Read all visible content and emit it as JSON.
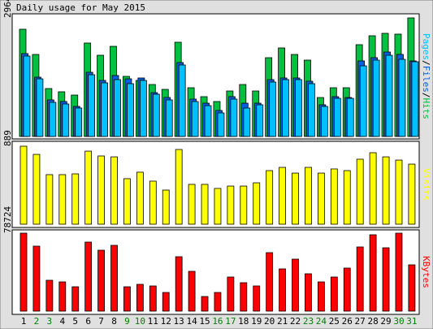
{
  "title": "Daily usage for May 2015",
  "chart_data": [
    {
      "type": "bar",
      "axis_label": "Pages/Files/Hits",
      "categories": [
        "1",
        "2",
        "3",
        "4",
        "5",
        "6",
        "7",
        "8",
        "9",
        "10",
        "11",
        "12",
        "13",
        "14",
        "15",
        "16",
        "17",
        "18",
        "19",
        "20",
        "21",
        "22",
        "23",
        "24",
        "25",
        "26",
        "27",
        "28",
        "29",
        "30",
        "31"
      ],
      "ylim": [
        0,
        2964
      ],
      "yticks": [
        2964
      ],
      "series": [
        {
          "name": "Hits",
          "color": "#00c040",
          "values": [
            2680,
            2050,
            1198,
            1117,
            1035,
            2335,
            2030,
            2253,
            1502,
            1401,
            1299,
            1177,
            2355,
            1218,
            995,
            873,
            1137,
            1299,
            1137,
            1969,
            2213,
            2050,
            1908,
            974,
            1218,
            1218,
            2294,
            2517,
            2578,
            2558,
            2964
          ]
        },
        {
          "name": "Files",
          "color": "#0060e0",
          "values": [
            2071,
            1482,
            914,
            873,
            751,
            1604,
            1401,
            1523,
            1441,
            1462,
            1096,
            974,
            1847,
            934,
            832,
            650,
            995,
            832,
            832,
            1421,
            1462,
            1462,
            1381,
            792,
            995,
            974,
            1888,
            1969,
            2111,
            2050,
            1888
          ]
        },
        {
          "name": "Pages",
          "color": "#00c0ff",
          "values": [
            2010,
            1441,
            853,
            812,
            711,
            1543,
            1340,
            1421,
            1320,
            1401,
            1056,
            914,
            1787,
            873,
            771,
            589,
            934,
            711,
            792,
            1360,
            1421,
            1421,
            1320,
            751,
            954,
            954,
            1766,
            1908,
            2030,
            1929,
            1868
          ]
        }
      ]
    },
    {
      "type": "bar",
      "axis_label": "Visits",
      "ylim": [
        0,
        889
      ],
      "yticks": [
        889
      ],
      "series": [
        {
          "name": "Visits",
          "color": "#ffff00",
          "values": [
            889,
            796,
            565,
            565,
            574,
            833,
            778,
            768,
            519,
            593,
            491,
            389,
            852,
            454,
            454,
            408,
            435,
            435,
            472,
            611,
            648,
            583,
            648,
            583,
            630,
            611,
            741,
            815,
            768,
            731,
            685
          ]
        }
      ]
    },
    {
      "type": "bar",
      "axis_label": "KBytes",
      "ylim": [
        0,
        78724
      ],
      "yticks": [
        78724
      ],
      "series": [
        {
          "name": "KBytes",
          "color": "#ff0000",
          "values": [
            78724,
            65603,
            31163,
            29523,
            24603,
            69703,
            61503,
            66423,
            24603,
            27063,
            25423,
            18863,
            54943,
            40183,
            14760,
            18863,
            34443,
            28703,
            25423,
            59043,
            42643,
            52483,
            37723,
            29523,
            34443,
            43463,
            64783,
            77084,
            63963,
            78724,
            46743
          ]
        }
      ],
      "category_colors": [
        "#000000",
        "#008000",
        "#008000",
        "#000000",
        "#000000",
        "#000000",
        "#000000",
        "#000000",
        "#008000",
        "#008000",
        "#000000",
        "#000000",
        "#000000",
        "#000000",
        "#000000",
        "#008000",
        "#008000",
        "#000000",
        "#000000",
        "#000000",
        "#000000",
        "#000000",
        "#008000",
        "#008000",
        "#000000",
        "#000000",
        "#000000",
        "#000000",
        "#000000",
        "#008000",
        "#008000"
      ]
    }
  ]
}
